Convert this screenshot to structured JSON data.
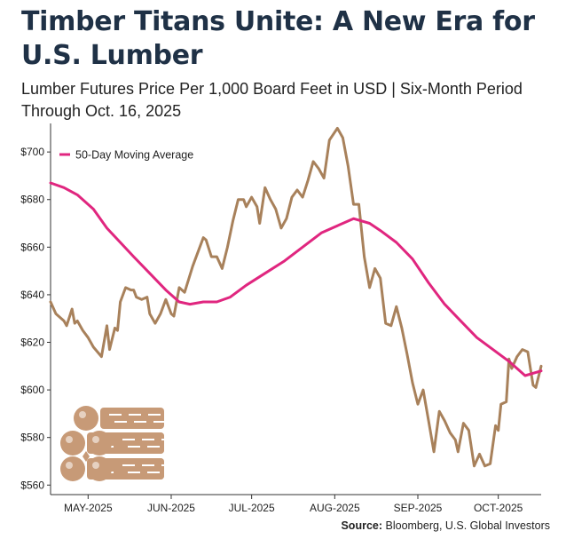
{
  "header": {
    "title": "Timber Titans Unite: A New Era for U.S. Lumber",
    "subtitle": "Lumber Futures Price Per 1,000 Board Feet in USD | Six-Month Period Through Oct. 16, 2025"
  },
  "footer": {
    "source_label": "Source:",
    "source_text": "Bloomberg, U.S. Global Investors"
  },
  "logo": {
    "icon": "lumber-logs-icon",
    "color": "#c79a77"
  },
  "colors": {
    "price": "#a8815b",
    "ma": "#e0267f",
    "axis": "#333333"
  },
  "chart_data": {
    "type": "line",
    "title": "",
    "xlabel": "",
    "ylabel": "",
    "ylim": [
      556,
      712
    ],
    "yticks": [
      560,
      580,
      600,
      620,
      640,
      660,
      680,
      700
    ],
    "ytick_labels": [
      "$560",
      "$580",
      "$600",
      "$620",
      "$640",
      "$660",
      "$680",
      "$700"
    ],
    "xlim": [
      "2025-04-17",
      "2025-10-17"
    ],
    "xticks": [
      "2025-05-01",
      "2025-06-01",
      "2025-07-01",
      "2025-08-01",
      "2025-09-01",
      "2025-10-01"
    ],
    "xtick_labels": [
      "MAY-2025",
      "JUN-2025",
      "JUL-2025",
      "AUG-2025",
      "SEP-2025",
      "OCT-2025"
    ],
    "grid": false,
    "legend": "top-left",
    "series": [
      {
        "name": "",
        "color": "#a8815b",
        "points": [
          [
            "2025-04-17",
            637
          ],
          [
            "2025-04-19",
            632
          ],
          [
            "2025-04-21",
            630
          ],
          [
            "2025-04-22",
            629
          ],
          [
            "2025-04-23",
            627
          ],
          [
            "2025-04-25",
            634
          ],
          [
            "2025-04-26",
            628
          ],
          [
            "2025-04-27",
            629
          ],
          [
            "2025-04-29",
            625
          ],
          [
            "2025-05-01",
            622
          ],
          [
            "2025-05-03",
            618
          ],
          [
            "2025-05-06",
            614
          ],
          [
            "2025-05-08",
            627
          ],
          [
            "2025-05-09",
            617
          ],
          [
            "2025-05-11",
            626
          ],
          [
            "2025-05-12",
            625
          ],
          [
            "2025-05-13",
            637
          ],
          [
            "2025-05-15",
            643
          ],
          [
            "2025-05-17",
            642
          ],
          [
            "2025-05-18",
            642
          ],
          [
            "2025-05-19",
            639
          ],
          [
            "2025-05-21",
            638
          ],
          [
            "2025-05-23",
            639
          ],
          [
            "2025-05-24",
            632
          ],
          [
            "2025-05-26",
            628
          ],
          [
            "2025-05-28",
            632
          ],
          [
            "2025-05-30",
            638
          ],
          [
            "2025-06-01",
            632
          ],
          [
            "2025-06-02",
            631
          ],
          [
            "2025-06-04",
            643
          ],
          [
            "2025-06-06",
            641
          ],
          [
            "2025-06-09",
            652
          ],
          [
            "2025-06-11",
            658
          ],
          [
            "2025-06-13",
            664
          ],
          [
            "2025-06-14",
            663
          ],
          [
            "2025-06-16",
            656
          ],
          [
            "2025-06-18",
            656
          ],
          [
            "2025-06-20",
            651
          ],
          [
            "2025-06-22",
            660
          ],
          [
            "2025-06-24",
            671
          ],
          [
            "2025-06-26",
            680
          ],
          [
            "2025-06-28",
            680
          ],
          [
            "2025-06-29",
            677
          ],
          [
            "2025-07-01",
            681
          ],
          [
            "2025-07-03",
            677
          ],
          [
            "2025-07-04",
            670
          ],
          [
            "2025-07-06",
            685
          ],
          [
            "2025-07-08",
            680
          ],
          [
            "2025-07-10",
            676
          ],
          [
            "2025-07-12",
            668
          ],
          [
            "2025-07-14",
            672
          ],
          [
            "2025-07-16",
            681
          ],
          [
            "2025-07-18",
            684
          ],
          [
            "2025-07-20",
            681
          ],
          [
            "2025-07-22",
            688
          ],
          [
            "2025-07-24",
            696
          ],
          [
            "2025-07-26",
            693
          ],
          [
            "2025-07-28",
            689
          ],
          [
            "2025-07-30",
            705
          ],
          [
            "2025-08-02",
            710
          ],
          [
            "2025-08-04",
            706
          ],
          [
            "2025-08-06",
            694
          ],
          [
            "2025-08-08",
            678
          ],
          [
            "2025-08-10",
            678
          ],
          [
            "2025-08-12",
            656
          ],
          [
            "2025-08-14",
            643
          ],
          [
            "2025-08-16",
            651
          ],
          [
            "2025-08-18",
            647
          ],
          [
            "2025-08-20",
            628
          ],
          [
            "2025-08-22",
            627
          ],
          [
            "2025-08-24",
            635
          ],
          [
            "2025-08-26",
            626
          ],
          [
            "2025-08-28",
            615
          ],
          [
            "2025-08-30",
            603
          ],
          [
            "2025-09-01",
            594
          ],
          [
            "2025-09-03",
            600
          ],
          [
            "2025-09-05",
            587
          ],
          [
            "2025-09-07",
            574
          ],
          [
            "2025-09-09",
            591
          ],
          [
            "2025-09-11",
            587
          ],
          [
            "2025-09-13",
            582
          ],
          [
            "2025-09-15",
            579
          ],
          [
            "2025-09-16",
            574
          ],
          [
            "2025-09-18",
            586
          ],
          [
            "2025-09-20",
            583
          ],
          [
            "2025-09-22",
            568
          ],
          [
            "2025-09-24",
            573
          ],
          [
            "2025-09-26",
            568
          ],
          [
            "2025-09-28",
            569
          ],
          [
            "2025-09-30",
            585
          ],
          [
            "2025-10-01",
            583
          ],
          [
            "2025-10-02",
            594
          ],
          [
            "2025-10-04",
            595
          ],
          [
            "2025-10-05",
            613
          ],
          [
            "2025-10-06",
            609
          ],
          [
            "2025-10-08",
            614
          ],
          [
            "2025-10-10",
            617
          ],
          [
            "2025-10-12",
            616
          ],
          [
            "2025-10-14",
            602
          ],
          [
            "2025-10-15",
            601
          ],
          [
            "2025-10-17",
            610
          ]
        ]
      },
      {
        "name": "50-Day Moving Average",
        "color": "#e0267f",
        "points": [
          [
            "2025-04-17",
            687
          ],
          [
            "2025-04-22",
            685
          ],
          [
            "2025-04-27",
            682
          ],
          [
            "2025-05-03",
            676
          ],
          [
            "2025-05-08",
            668
          ],
          [
            "2025-05-13",
            662
          ],
          [
            "2025-05-18",
            656
          ],
          [
            "2025-05-24",
            649
          ],
          [
            "2025-05-30",
            642
          ],
          [
            "2025-06-04",
            637
          ],
          [
            "2025-06-08",
            636
          ],
          [
            "2025-06-13",
            637
          ],
          [
            "2025-06-18",
            637
          ],
          [
            "2025-06-23",
            639
          ],
          [
            "2025-06-29",
            644
          ],
          [
            "2025-07-06",
            649
          ],
          [
            "2025-07-13",
            654
          ],
          [
            "2025-07-20",
            660
          ],
          [
            "2025-07-27",
            666
          ],
          [
            "2025-08-02",
            669
          ],
          [
            "2025-08-08",
            672
          ],
          [
            "2025-08-14",
            670
          ],
          [
            "2025-08-18",
            667
          ],
          [
            "2025-08-24",
            662
          ],
          [
            "2025-08-30",
            655
          ],
          [
            "2025-09-05",
            645
          ],
          [
            "2025-09-11",
            636
          ],
          [
            "2025-09-17",
            629
          ],
          [
            "2025-09-23",
            622
          ],
          [
            "2025-09-29",
            617
          ],
          [
            "2025-10-05",
            612
          ],
          [
            "2025-10-11",
            606
          ],
          [
            "2025-10-17",
            608
          ]
        ]
      }
    ]
  }
}
